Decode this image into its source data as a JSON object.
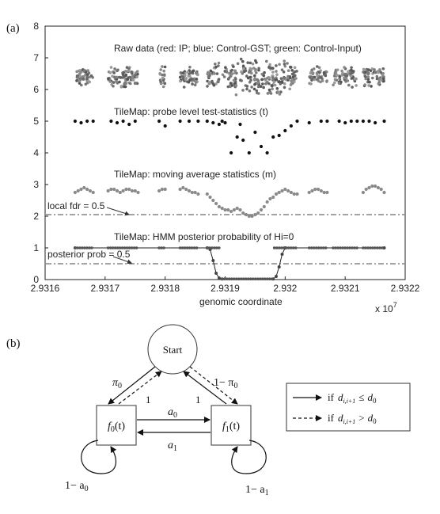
{
  "figure": {
    "panel_a_label": "(a)",
    "panel_b_label": "(b)"
  },
  "chart_data": {
    "type": "scatter",
    "xlabel": "genomic coordinate",
    "x_multiplier_label": "x 10",
    "x_multiplier_exp": "7",
    "xlim": [
      2.9316,
      2.9322
    ],
    "ylim": [
      0,
      8
    ],
    "x_ticks": [
      "2.9316",
      "2.9317",
      "2.9318",
      "2.9319",
      "2.932",
      "2.9321",
      "2.9322"
    ],
    "y_ticks": [
      "0",
      "1",
      "2",
      "3",
      "4",
      "5",
      "6",
      "7",
      "8"
    ],
    "annotations": {
      "raw": "Raw data (red: IP; blue: Control-GST; green: Control-Input)",
      "tstat": "TileMap: probe level test-statistics (t)",
      "mavg": "TileMap: moving average statistics (m)",
      "hmm": "TileMap: HMM posterior probability of Hi=0",
      "fdr": "local fdr = 0.5",
      "post": "posterior prob = 0.5"
    },
    "reference_lines": [
      {
        "label": "local fdr = 0.5",
        "y": 2.05
      },
      {
        "label": "posterior prob = 0.5",
        "y": 0.5
      }
    ],
    "clusters": [
      {
        "x0": 2.93165,
        "x1": 2.93168
      },
      {
        "x0": 2.931705,
        "x1": 2.931755
      },
      {
        "x0": 2.93179,
        "x1": 2.9318
      },
      {
        "x0": 2.931825,
        "x1": 2.931855
      },
      {
        "x0": 2.93187,
        "x1": 2.93189
      },
      {
        "x0": 2.931895,
        "x1": 2.93202
      },
      {
        "x0": 2.93204,
        "x1": 2.93207
      },
      {
        "x0": 2.93208,
        "x1": 2.93212
      },
      {
        "x0": 2.93213,
        "x1": 2.932165
      }
    ],
    "series": [
      {
        "name": "raw",
        "y_base": 6.4,
        "y_spread": 0.35
      },
      {
        "name": "tstat",
        "x": [
          2.93165,
          2.93166,
          2.93167,
          2.93168,
          2.93171,
          2.93172,
          2.93173,
          2.93174,
          2.93175,
          2.93179,
          2.9318,
          2.931825,
          2.93184,
          2.931855,
          2.93187,
          2.93188,
          2.93189,
          2.931895,
          2.9319,
          2.93191,
          2.93192,
          2.931925,
          2.93193,
          2.93194,
          2.93195,
          2.93196,
          2.93197,
          2.93198,
          2.93199,
          2.932,
          2.93201,
          2.93202,
          2.93204,
          2.93206,
          2.93207,
          2.93209,
          2.9321,
          2.93211,
          2.93212,
          2.93213,
          2.93214,
          2.93215,
          2.932165
        ],
        "y": [
          5.0,
          4.95,
          5.0,
          5.0,
          5.0,
          4.95,
          5.0,
          4.9,
          5.0,
          5.0,
          4.85,
          5.0,
          5.0,
          5.0,
          5.0,
          4.95,
          4.9,
          5.0,
          4.95,
          4.0,
          4.5,
          4.9,
          4.4,
          4.0,
          4.65,
          4.2,
          4.0,
          4.5,
          4.55,
          4.7,
          4.85,
          5.0,
          4.95,
          5.0,
          5.0,
          5.0,
          4.95,
          5.0,
          5.0,
          5.0,
          5.0,
          4.95,
          5.0
        ]
      },
      {
        "name": "mavg",
        "x": [
          2.93165,
          2.931655,
          2.93166,
          2.931665,
          2.93167,
          2.931675,
          2.93168,
          2.931705,
          2.93171,
          2.931715,
          2.93172,
          2.931725,
          2.93173,
          2.931735,
          2.93174,
          2.931745,
          2.93175,
          2.931755,
          2.93179,
          2.931795,
          2.9318,
          2.931825,
          2.93183,
          2.931835,
          2.93184,
          2.931845,
          2.93185,
          2.931855,
          2.93187,
          2.931875,
          2.93188,
          2.931885,
          2.93189,
          2.931895,
          2.9319,
          2.931905,
          2.93191,
          2.931915,
          2.93192,
          2.931925,
          2.93193,
          2.931935,
          2.93194,
          2.931945,
          2.93195,
          2.931955,
          2.93196,
          2.931965,
          2.93197,
          2.931975,
          2.93198,
          2.931985,
          2.93199,
          2.931995,
          2.932,
          2.932005,
          2.93201,
          2.932015,
          2.93202,
          2.93204,
          2.932045,
          2.93205,
          2.932055,
          2.93206,
          2.932065,
          2.93207,
          2.93213,
          2.932135,
          2.93214,
          2.932145,
          2.93215,
          2.932155,
          2.93216,
          2.932165
        ],
        "y": [
          2.75,
          2.8,
          2.85,
          2.9,
          2.85,
          2.8,
          2.75,
          2.8,
          2.85,
          2.85,
          2.8,
          2.75,
          2.8,
          2.85,
          2.85,
          2.8,
          2.8,
          2.75,
          2.8,
          2.85,
          2.85,
          2.85,
          2.9,
          2.85,
          2.8,
          2.75,
          2.75,
          2.7,
          2.7,
          2.6,
          2.5,
          2.4,
          2.3,
          2.25,
          2.2,
          2.2,
          2.15,
          2.2,
          2.25,
          2.2,
          2.1,
          2.05,
          2.0,
          2.0,
          2.05,
          2.1,
          2.2,
          2.3,
          2.45,
          2.55,
          2.6,
          2.7,
          2.75,
          2.8,
          2.85,
          2.8,
          2.75,
          2.7,
          2.7,
          2.75,
          2.8,
          2.85,
          2.85,
          2.8,
          2.75,
          2.75,
          2.75,
          2.85,
          2.9,
          2.95,
          2.95,
          2.9,
          2.85,
          2.75
        ]
      },
      {
        "name": "hmm",
        "x": [
          2.93165,
          2.93187,
          2.931875,
          2.93188,
          2.931885,
          2.93189,
          2.931895,
          2.93198,
          2.931985,
          2.93199,
          2.931995,
          2.932,
          2.932165
        ],
        "y": [
          1.0,
          1.0,
          0.95,
          0.6,
          0.2,
          0.05,
          0.02,
          0.02,
          0.1,
          0.4,
          0.8,
          1.0,
          1.0
        ]
      }
    ]
  },
  "diagram": {
    "start_label": "Start",
    "f0_label": "f",
    "f0_sub": "0",
    "f0_arg": "(t)",
    "f1_label": "f",
    "f1_sub": "1",
    "f1_arg": "(t)",
    "pi0_label": "π",
    "pi0_sub": "0",
    "one_minus_pi0_label": "1− π",
    "one_minus_pi0_sub": "0",
    "one_left": "1",
    "one_right": "1",
    "a0_label": "a",
    "a0_sub": "0",
    "a1_label": "a",
    "a1_sub": "1",
    "self0_label": "1− a",
    "self0_sub": "0",
    "self1_label": "1− a",
    "self1_sub": "1",
    "legend": {
      "solid_prefix": "if",
      "solid_op": "≤",
      "dashed_prefix": "if",
      "dashed_op": ">",
      "d_sym": "d",
      "d_sub": "i,i+1",
      "d0_sym": "d",
      "d0_sub": "0"
    }
  }
}
